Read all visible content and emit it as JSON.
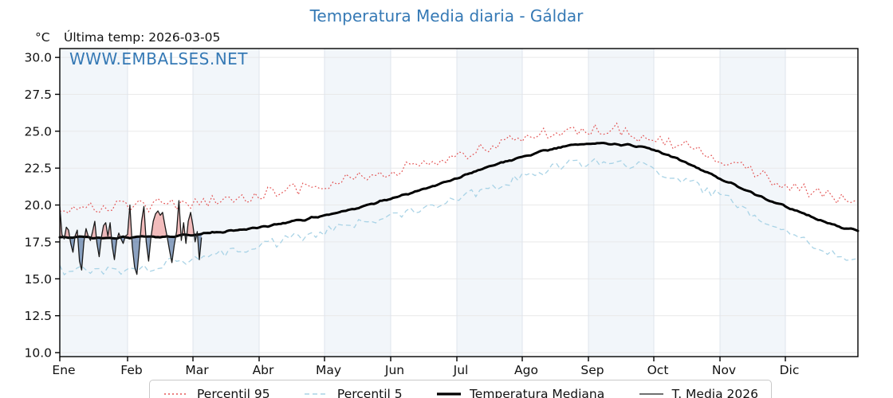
{
  "page": {
    "title": "Temperatura Media diaria - Gáldar"
  },
  "header": {
    "unit": "°C",
    "last_temp_annotation": "Última temp: 2026-03-05",
    "watermark": "WWW.EMBALSES.NET"
  },
  "colors": {
    "title": "#3579b5",
    "watermark": "#3579b5",
    "band": "#f2f6fa",
    "grid_horizontal": "#e9e9e9",
    "grid_vertical": "#dfe4ec",
    "frame": "#000000",
    "fill_above_median": "rgba(226,106,106,0.45)",
    "fill_below_median": "rgba(70,105,155,0.62)"
  },
  "chart_data": {
    "type": "line",
    "title": "Temperatura Media diaria - Gáldar",
    "ylabel": "°C",
    "ylim": [
      9.73,
      30.6
    ],
    "y_tick_values": [
      10.0,
      12.5,
      15.0,
      17.5,
      20.0,
      22.5,
      25.0,
      27.5,
      30.0
    ],
    "y_tick_labels": [
      "10.0",
      "12.5",
      "15.0",
      "17.5",
      "20.0",
      "22.5",
      "25.0",
      "27.5",
      "30.0"
    ],
    "x_tick_labels": [
      "Ene",
      "Feb",
      "Mar",
      "Abr",
      "May",
      "Jun",
      "Jul",
      "Ago",
      "Sep",
      "Oct",
      "Nov",
      "Dic"
    ],
    "month_start_days": [
      0,
      31,
      59,
      90,
      120,
      151,
      181,
      212,
      243,
      273,
      304,
      334,
      365
    ],
    "grid": true,
    "legend_position": "bottom",
    "series": [
      {
        "name": "Percentil 95",
        "style": "dotted",
        "color": "#e35454",
        "monthly_anchors": [
          19.6,
          19.9,
          20.1,
          20.7,
          21.4,
          22.3,
          23.3,
          24.5,
          25.1,
          24.5,
          23.2,
          21.4,
          20.3
        ],
        "jitter": 0.42
      },
      {
        "name": "Percentil 5",
        "style": "dashed",
        "color": "#a9d3e6",
        "monthly_anchors": [
          15.6,
          15.6,
          16.4,
          17.2,
          18.2,
          19.3,
          20.5,
          21.9,
          22.9,
          22.4,
          20.6,
          18.3,
          16.2
        ],
        "jitter": 0.34
      },
      {
        "name": "Temperatura Mediana",
        "style": "solid-thick",
        "color": "#000000",
        "monthly_anchors": [
          17.8,
          17.8,
          18.0,
          18.5,
          19.3,
          20.4,
          21.8,
          23.3,
          24.15,
          23.7,
          21.8,
          19.9,
          18.25
        ],
        "jitter": 0.1
      },
      {
        "name": "T. Media 2026",
        "style": "solid-thin",
        "color": "#1a1a1a",
        "start_day": 0,
        "daily_values": [
          19.9,
          18.0,
          17.7,
          18.5,
          18.3,
          17.4,
          16.8,
          17.9,
          18.3,
          16.2,
          15.6,
          17.5,
          18.4,
          17.9,
          17.6,
          18.2,
          18.9,
          17.4,
          16.5,
          17.8,
          18.6,
          18.8,
          17.9,
          18.8,
          17.2,
          16.3,
          17.6,
          18.1,
          17.7,
          17.4,
          17.9,
          18.0,
          20.0,
          17.2,
          15.8,
          15.3,
          17.0,
          18.9,
          19.9,
          17.5,
          16.2,
          17.8,
          18.9,
          19.4,
          19.6,
          19.3,
          19.5,
          18.6,
          17.8,
          16.9,
          16.1,
          17.3,
          18.2,
          20.3,
          17.6,
          18.8,
          17.4,
          18.9,
          19.5,
          18.6,
          17.5,
          18.2,
          16.3,
          17.8
        ]
      }
    ],
    "legend": [
      "Percentil 95",
      "Percentil 5",
      "Temperatura Mediana",
      "T. Media 2026"
    ]
  }
}
